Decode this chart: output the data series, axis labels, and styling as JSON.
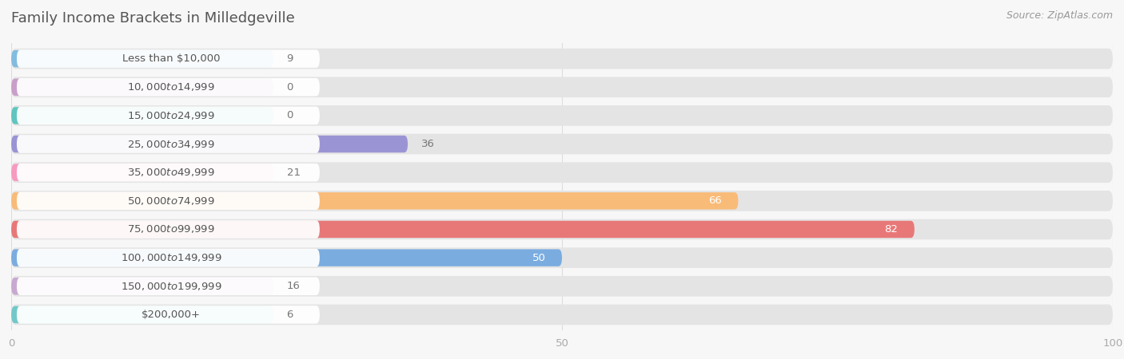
{
  "title": "Family Income Brackets in Milledgeville",
  "source": "Source: ZipAtlas.com",
  "categories": [
    "Less than $10,000",
    "$10,000 to $14,999",
    "$15,000 to $24,999",
    "$25,000 to $34,999",
    "$35,000 to $49,999",
    "$50,000 to $74,999",
    "$75,000 to $99,999",
    "$100,000 to $149,999",
    "$150,000 to $199,999",
    "$200,000+"
  ],
  "values": [
    9,
    0,
    0,
    36,
    21,
    66,
    82,
    50,
    16,
    6
  ],
  "bar_colors": [
    "#82bce0",
    "#c99fc9",
    "#60c5be",
    "#9b94d4",
    "#f79abf",
    "#f9bb78",
    "#e87878",
    "#7aace0",
    "#c8a8d0",
    "#72c8c8"
  ],
  "xlim": [
    0,
    100
  ],
  "xticks": [
    0,
    50,
    100
  ],
  "background_color": "#f7f7f7",
  "bar_bg_color": "#e4e4e4",
  "label_bg_color": "#ffffff",
  "title_color": "#555555",
  "label_text_color": "#555555",
  "value_color_inside": "#ffffff",
  "value_color_outside": "#777777",
  "tick_color": "#aaaaaa",
  "grid_color": "#dddddd",
  "title_fontsize": 13,
  "label_fontsize": 9.5,
  "value_fontsize": 9.5,
  "source_fontsize": 9,
  "inside_threshold": 50
}
